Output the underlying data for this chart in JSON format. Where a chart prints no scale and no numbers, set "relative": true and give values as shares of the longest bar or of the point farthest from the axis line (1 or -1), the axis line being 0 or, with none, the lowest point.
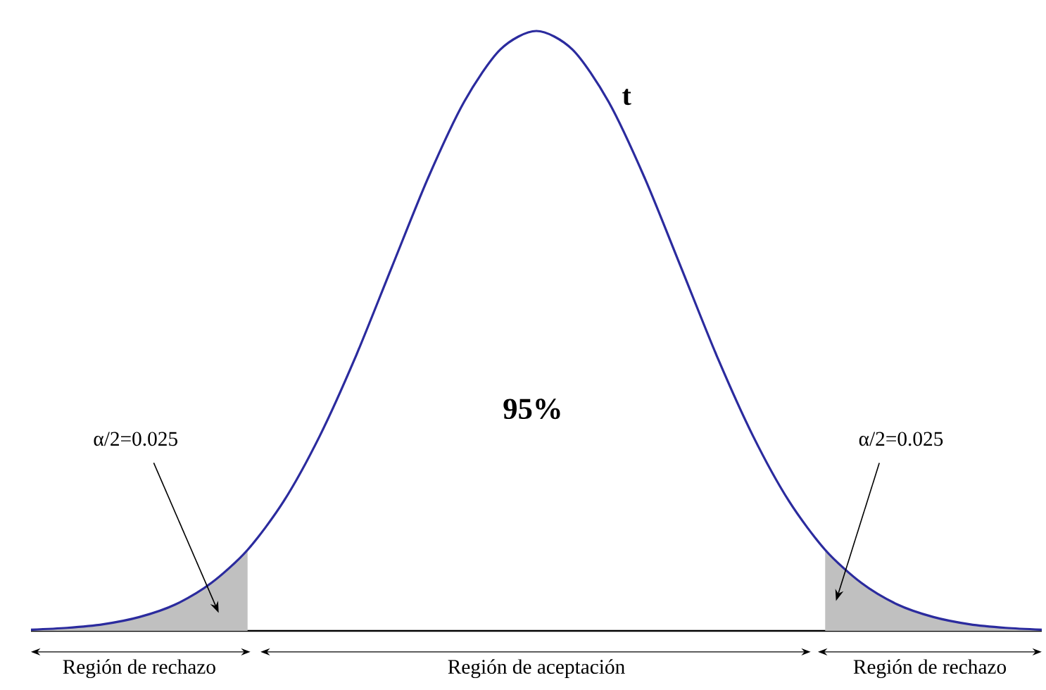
{
  "chart_data": {
    "type": "line",
    "relative": true,
    "marker": "none",
    "categories": [
      null,
      null,
      null,
      null,
      null,
      null,
      null,
      null,
      null,
      null,
      null,
      null,
      null,
      null,
      null,
      null,
      null,
      null,
      null,
      null,
      null,
      null,
      null,
      null,
      null,
      null,
      null,
      null,
      null
    ],
    "series": [
      {
        "type": "area",
        "color": "#c0c0c0",
        "values": [
          0.002,
          0.005,
          0.011,
          0.023,
          0.044,
          0.08,
          0.135,
          null,
          null,
          null,
          null,
          null,
          null,
          null,
          null,
          null,
          null,
          null,
          null,
          null,
          null,
          null,
          null,
          null,
          null,
          null,
          null,
          null,
          null
        ]
      },
      {
        "type": "area",
        "color": "#c0c0c0",
        "values": [
          null,
          null,
          null,
          null,
          null,
          null,
          null,
          null,
          null,
          null,
          null,
          null,
          null,
          null,
          null,
          null,
          null,
          null,
          null,
          null,
          null,
          null,
          0.135,
          0.08,
          0.044,
          0.023,
          0.011,
          0.005,
          0.002
        ]
      },
      {
        "color": "#2b2b9e",
        "values": [
          0.002,
          0.005,
          0.011,
          0.023,
          0.044,
          0.08,
          0.135,
          0.216,
          0.325,
          0.458,
          0.607,
          0.755,
          0.882,
          0.969,
          1,
          0.969,
          0.882,
          0.755,
          0.607,
          0.458,
          0.325,
          0.216,
          0.135,
          0.08,
          0.044,
          0.023,
          0.011,
          0.005,
          0.002
        ]
      }
    ],
    "annotations": [
      "t",
      "95%",
      "α/2=0.025",
      "α/2=0.025",
      "Región de rechazo",
      "Región de aceptación",
      "Región de rechazo"
    ]
  }
}
